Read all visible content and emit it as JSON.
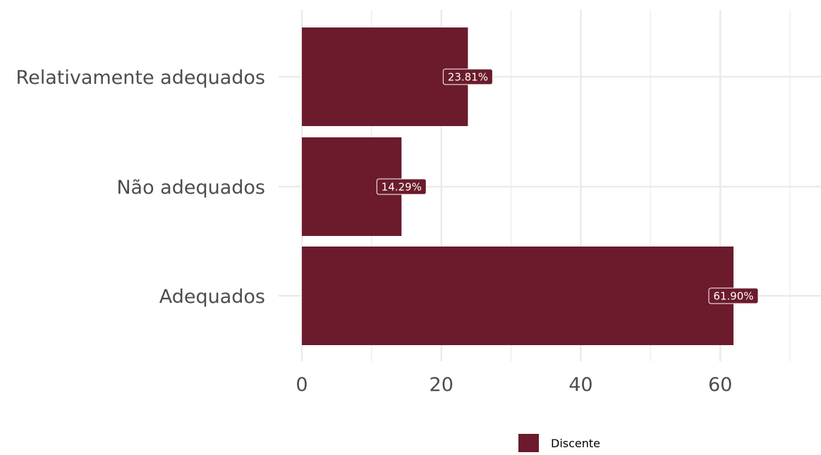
{
  "chart_data": {
    "type": "bar",
    "orientation": "horizontal",
    "categories": [
      "Adequados",
      "Não adequados",
      "Relativamente adequados"
    ],
    "series": [
      {
        "name": "Discente",
        "values": [
          61.9,
          14.29,
          23.81
        ],
        "labels": [
          "61.90%",
          "14.29%",
          "23.81%"
        ]
      }
    ],
    "xlim": [
      0,
      74
    ],
    "xticks": [
      0,
      20,
      40,
      60
    ],
    "xtick_labels": [
      "0",
      "20",
      "40",
      "60"
    ],
    "grid": true,
    "legend": {
      "position": "bottom",
      "entries": [
        "Discente"
      ]
    },
    "colors": {
      "bar": "#6b1b2b",
      "grid": "#ebebeb",
      "text": "#4d4d4d",
      "label_border": "#ffffff"
    }
  }
}
